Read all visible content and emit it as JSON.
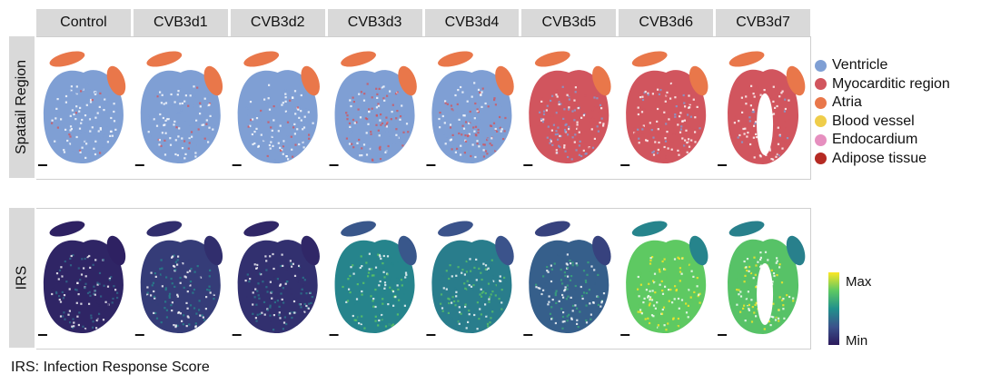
{
  "conditions": [
    "Control",
    "CVB3d1",
    "CVB3d2",
    "CVB3d3",
    "CVB3d4",
    "CVB3d5",
    "CVB3d6",
    "CVB3d7"
  ],
  "rows": {
    "spatial": "Spatail Region",
    "irs": "IRS"
  },
  "legend": {
    "items": [
      {
        "label": "Ventricle",
        "color": "#7f9fd4"
      },
      {
        "label": "Myocarditic region",
        "color": "#d1555e"
      },
      {
        "label": "Atria",
        "color": "#e9774a"
      },
      {
        "label": "Blood vessel",
        "color": "#efcd4a"
      },
      {
        "label": "Endocardium",
        "color": "#e68fbf"
      },
      {
        "label": "Adipose tissue",
        "color": "#b52a23"
      }
    ]
  },
  "irs_scale": {
    "max_label": "Max",
    "min_label": "Min",
    "colors": [
      "#2c1a5c",
      "#3b528b",
      "#21918c",
      "#5ec962",
      "#fde725"
    ],
    "levels": [
      0.05,
      0.15,
      0.1,
      0.45,
      0.42,
      0.3,
      0.75,
      0.72
    ]
  },
  "spatial_fill": [
    {
      "base": "#7f9fd4",
      "accent": "#d1555e",
      "accent_share": 0.05
    },
    {
      "base": "#7f9fd4",
      "accent": "#d1555e",
      "accent_share": 0.08
    },
    {
      "base": "#7f9fd4",
      "accent": "#d1555e",
      "accent_share": 0.08
    },
    {
      "base": "#7f9fd4",
      "accent": "#d1555e",
      "accent_share": 0.45
    },
    {
      "base": "#7f9fd4",
      "accent": "#d1555e",
      "accent_share": 0.4
    },
    {
      "base": "#d1555e",
      "accent": "#7f9fd4",
      "accent_share": 0.45
    },
    {
      "base": "#d1555e",
      "accent": "#7f9fd4",
      "accent_share": 0.15
    },
    {
      "base": "#d1555e",
      "accent": "#7f9fd4",
      "accent_share": 0.12
    }
  ],
  "footnote": "IRS: Infection Response Score"
}
